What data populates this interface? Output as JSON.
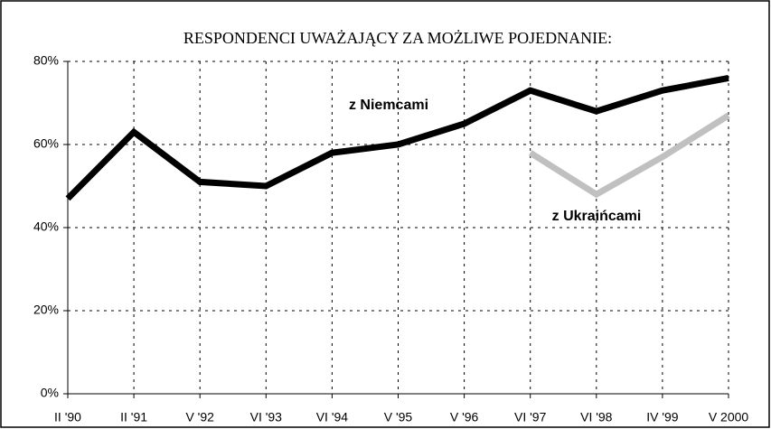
{
  "chart_data": {
    "type": "line",
    "title": "RESPONDENCI UWAŻAJĄCY ZA MOŻLIWE POJEDNANIE:",
    "categories": [
      "II '90",
      "II '91",
      "V '92",
      "VI '93",
      "VI '94",
      "V '95",
      "V '96",
      "VI '97",
      "VI '98",
      "IV '99",
      "V 2000"
    ],
    "series": [
      {
        "name": "z Niemcami",
        "color": "#000000",
        "values": [
          47,
          63,
          51,
          50,
          58,
          60,
          65,
          73,
          68,
          73,
          76
        ]
      },
      {
        "name": "z Ukraińcami",
        "color": "#c0c0c0",
        "values": [
          null,
          null,
          null,
          null,
          null,
          null,
          null,
          58,
          48,
          57,
          67
        ]
      }
    ],
    "ylim": [
      0,
      80
    ],
    "yticks": [
      {
        "value": 0,
        "label": "0%"
      },
      {
        "value": 20,
        "label": "20%"
      },
      {
        "value": 40,
        "label": "40%"
      },
      {
        "value": 60,
        "label": "60%"
      },
      {
        "value": 80,
        "label": "80%"
      }
    ],
    "grid": true
  }
}
